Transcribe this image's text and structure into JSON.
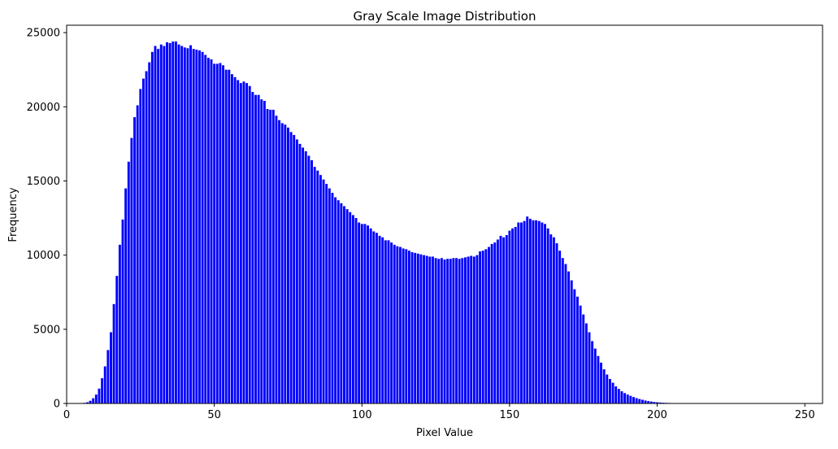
{
  "chart_data": {
    "type": "bar",
    "title": "Gray Scale Image Distribution",
    "xlabel": "Pixel Value",
    "ylabel": "Frequency",
    "xlim": [
      0,
      256
    ],
    "ylim": [
      0,
      25500
    ],
    "xticks": [
      0,
      50,
      100,
      150,
      200,
      250
    ],
    "yticks": [
      0,
      5000,
      10000,
      15000,
      20000,
      25000
    ],
    "grid": false,
    "bar_color": "#0000ff",
    "x_start": 5,
    "values": [
      20,
      40,
      80,
      180,
      350,
      600,
      1000,
      1700,
      2500,
      3600,
      4800,
      6700,
      8600,
      10700,
      12400,
      14500,
      16300,
      17900,
      19300,
      20100,
      21200,
      21900,
      22400,
      23000,
      23700,
      24100,
      23900,
      24200,
      24100,
      24350,
      24300,
      24400,
      24400,
      24200,
      24100,
      24000,
      23950,
      24150,
      23900,
      23850,
      23800,
      23700,
      23500,
      23300,
      23200,
      22900,
      22900,
      22950,
      22800,
      22500,
      22500,
      22200,
      22000,
      21800,
      21600,
      21700,
      21600,
      21400,
      21000,
      20800,
      20800,
      20500,
      20400,
      19850,
      19800,
      19800,
      19400,
      19100,
      18900,
      18800,
      18600,
      18300,
      18100,
      17800,
      17500,
      17250,
      17000,
      16700,
      16400,
      15950,
      15700,
      15400,
      15100,
      14800,
      14500,
      14200,
      13900,
      13700,
      13500,
      13300,
      13100,
      12900,
      12700,
      12500,
      12200,
      12100,
      12100,
      12000,
      11800,
      11600,
      11500,
      11300,
      11200,
      11000,
      11000,
      10850,
      10700,
      10600,
      10550,
      10450,
      10400,
      10300,
      10200,
      10150,
      10100,
      10050,
      10000,
      9950,
      9900,
      9900,
      9800,
      9750,
      9800,
      9700,
      9750,
      9750,
      9800,
      9800,
      9750,
      9800,
      9850,
      9900,
      9950,
      9900,
      10000,
      10250,
      10300,
      10400,
      10550,
      10750,
      10850,
      11050,
      11300,
      11200,
      11350,
      11650,
      11800,
      11900,
      12200,
      12200,
      12300,
      12600,
      12450,
      12350,
      12350,
      12300,
      12200,
      12100,
      11800,
      11400,
      11200,
      10800,
      10300,
      9800,
      9400,
      8900,
      8300,
      7700,
      7200,
      6600,
      6000,
      5400,
      4800,
      4200,
      3700,
      3200,
      2750,
      2300,
      1950,
      1650,
      1400,
      1150,
      980,
      820,
      700,
      600,
      510,
      430,
      360,
      300,
      250,
      200,
      160,
      130,
      100,
      80,
      65,
      50,
      40,
      32,
      26,
      20,
      16,
      12,
      10,
      8,
      6,
      5,
      4,
      3,
      2,
      2,
      1,
      1
    ]
  }
}
